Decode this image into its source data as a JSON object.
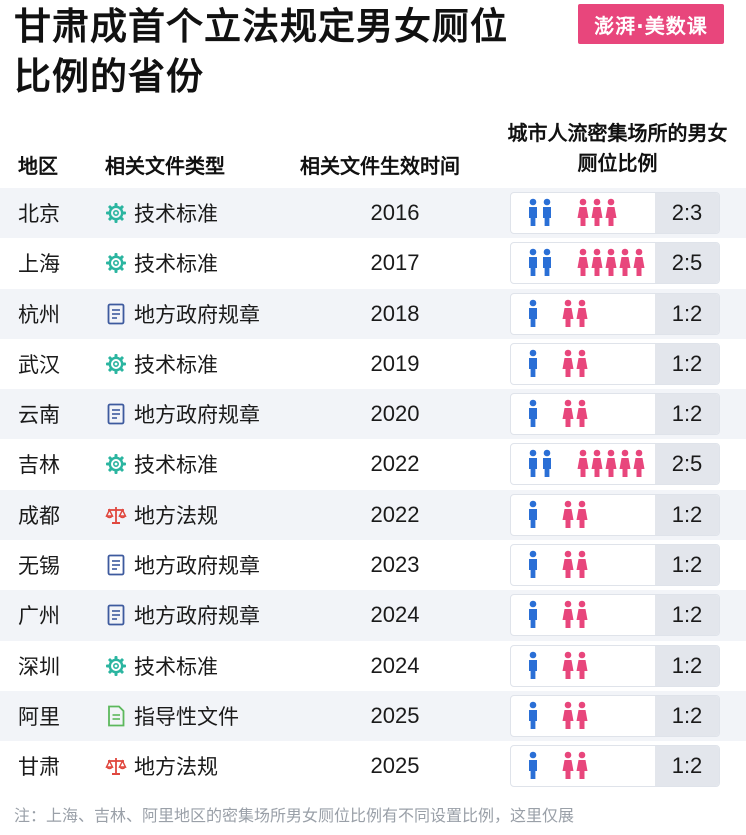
{
  "header": {
    "title": "甘肃成首个立法规定男女厕位比例的省份",
    "logo_text": "澎湃·美数课"
  },
  "colors": {
    "male": "#2a6fd6",
    "female": "#e8467c",
    "tech_standard": "#2bb5a0",
    "gov_regulation": "#3d5a9e",
    "local_law": "#e0483f",
    "guideline": "#5cb85c"
  },
  "chart_data": {
    "type": "table",
    "columns": [
      "地区",
      "相关文件类型",
      "相关文件生效时间",
      "城市人流密集场所的男女厕位比例"
    ],
    "rows": [
      {
        "city": "北京",
        "type": "技术标准",
        "type_icon": "gear-icon",
        "year": "2016",
        "male": 2,
        "female": 3,
        "ratio": "2:3"
      },
      {
        "city": "上海",
        "type": "技术标准",
        "type_icon": "gear-icon",
        "year": "2017",
        "male": 2,
        "female": 5,
        "ratio": "2:5"
      },
      {
        "city": "杭州",
        "type": "地方政府规章",
        "type_icon": "document-icon",
        "year": "2018",
        "male": 1,
        "female": 2,
        "ratio": "1:2"
      },
      {
        "city": "武汉",
        "type": "技术标准",
        "type_icon": "gear-icon",
        "year": "2019",
        "male": 1,
        "female": 2,
        "ratio": "1:2"
      },
      {
        "city": "云南",
        "type": "地方政府规章",
        "type_icon": "document-icon",
        "year": "2020",
        "male": 1,
        "female": 2,
        "ratio": "1:2"
      },
      {
        "city": "吉林",
        "type": "技术标准",
        "type_icon": "gear-icon",
        "year": "2022",
        "male": 2,
        "female": 5,
        "ratio": "2:5"
      },
      {
        "city": "成都",
        "type": "地方法规",
        "type_icon": "scales-icon",
        "year": "2022",
        "male": 1,
        "female": 2,
        "ratio": "1:2"
      },
      {
        "city": "无锡",
        "type": "地方政府规章",
        "type_icon": "document-icon",
        "year": "2023",
        "male": 1,
        "female": 2,
        "ratio": "1:2"
      },
      {
        "city": "广州",
        "type": "地方政府规章",
        "type_icon": "document-icon",
        "year": "2024",
        "male": 1,
        "female": 2,
        "ratio": "1:2"
      },
      {
        "city": "深圳",
        "type": "技术标准",
        "type_icon": "gear-icon",
        "year": "2024",
        "male": 1,
        "female": 2,
        "ratio": "1:2"
      },
      {
        "city": "阿里",
        "type": "指导性文件",
        "type_icon": "guideline-icon",
        "year": "2025",
        "male": 1,
        "female": 2,
        "ratio": "1:2"
      },
      {
        "city": "甘肃",
        "type": "地方法规",
        "type_icon": "scales-icon",
        "year": "2025",
        "male": 1,
        "female": 2,
        "ratio": "1:2"
      }
    ]
  },
  "footnote": "注：上海、吉林、阿里地区的密集场所男女厕位比例有不同设置比例，这里仅展"
}
